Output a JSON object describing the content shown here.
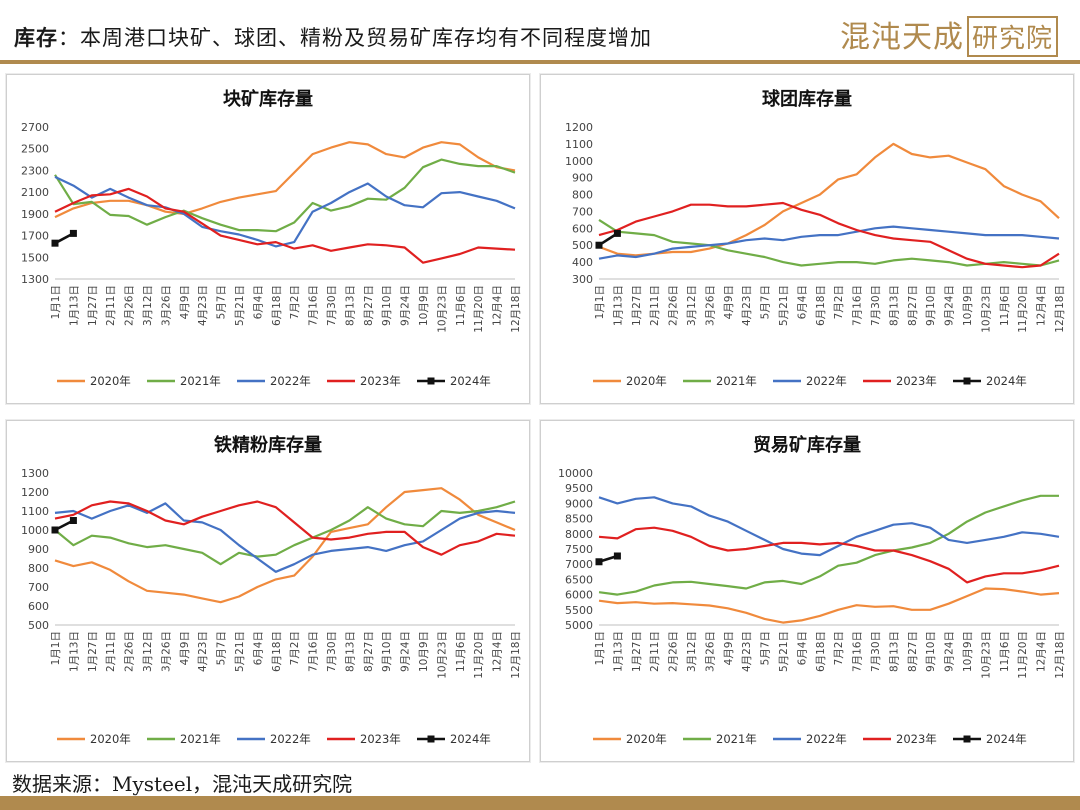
{
  "header": {
    "title_bold": "库存",
    "title_rest": "：本周港口块矿、球团、精粉及贸易矿库存均有不同程度增加"
  },
  "logo": {
    "main": "混沌天成",
    "boxed": "研究院"
  },
  "footer": {
    "source": "数据来源：Mysteel，混沌天成研究院"
  },
  "colors": {
    "2020年": "#f08a3c",
    "2021年": "#70ad47",
    "2022年": "#4472c4",
    "2023年": "#e02020",
    "2024年": "#111111",
    "brand": "#b08a4e"
  },
  "chart_data": [
    {
      "type": "line",
      "title": "块矿库存量",
      "x_labels": [
        "1月1日",
        "1月13日",
        "1月27日",
        "2月11日",
        "2月26日",
        "3月12日",
        "3月26日",
        "4月9日",
        "4月23日",
        "5月7日",
        "5月21日",
        "6月4日",
        "6月18日",
        "7月2日",
        "7月16日",
        "7月30日",
        "8月13日",
        "8月27日",
        "9月10日",
        "9月24日",
        "10月9日",
        "10月23日",
        "11月6日",
        "11月20日",
        "12月4日",
        "12月18日"
      ],
      "ylim": [
        1300,
        2700
      ],
      "yticks": [
        1300,
        1500,
        1700,
        1900,
        2100,
        2300,
        2500,
        2700
      ],
      "series": [
        {
          "name": "2020年",
          "values": [
            1870,
            1950,
            2000,
            2020,
            2020,
            1980,
            1920,
            1900,
            1950,
            2010,
            2050,
            2080,
            2110,
            2280,
            2450,
            2510,
            2560,
            2540,
            2450,
            2420,
            2510,
            2560,
            2540,
            2420,
            2330,
            2300
          ]
        },
        {
          "name": "2021年",
          "values": [
            2260,
            1990,
            2010,
            1890,
            1880,
            1800,
            1870,
            1930,
            1860,
            1800,
            1750,
            1750,
            1740,
            1820,
            2000,
            1930,
            1970,
            2040,
            2030,
            2140,
            2330,
            2400,
            2360,
            2340,
            2340,
            2280
          ]
        },
        {
          "name": "2022年",
          "values": [
            2240,
            2160,
            2050,
            2130,
            2050,
            1980,
            1960,
            1900,
            1780,
            1740,
            1710,
            1660,
            1600,
            1640,
            1920,
            2000,
            2100,
            2180,
            2060,
            1980,
            1960,
            2090,
            2100,
            2060,
            2020,
            1950
          ]
        },
        {
          "name": "2023年",
          "values": [
            1920,
            2000,
            2070,
            2080,
            2130,
            2060,
            1950,
            1920,
            1810,
            1700,
            1660,
            1620,
            1640,
            1580,
            1610,
            1560,
            1590,
            1620,
            1610,
            1590,
            1450,
            1490,
            1530,
            1590,
            1580,
            1570
          ]
        },
        {
          "name": "2024年",
          "values": [
            1630,
            1720
          ]
        }
      ]
    },
    {
      "type": "line",
      "title": "球团库存量",
      "x_labels": [
        "1月1日",
        "1月13日",
        "1月27日",
        "2月11日",
        "2月26日",
        "3月12日",
        "3月26日",
        "4月9日",
        "4月23日",
        "5月7日",
        "5月21日",
        "6月4日",
        "6月18日",
        "7月2日",
        "7月16日",
        "7月30日",
        "8月13日",
        "8月27日",
        "9月10日",
        "9月24日",
        "10月9日",
        "10月23日",
        "11月6日",
        "11月20日",
        "12月4日",
        "12月18日"
      ],
      "ylim": [
        300,
        1200
      ],
      "yticks": [
        300,
        400,
        500,
        600,
        700,
        800,
        900,
        1000,
        1100,
        1200
      ],
      "series": [
        {
          "name": "2020年",
          "values": [
            490,
            450,
            440,
            450,
            460,
            460,
            480,
            510,
            560,
            620,
            700,
            750,
            800,
            890,
            920,
            1020,
            1100,
            1040,
            1020,
            1030,
            990,
            950,
            850,
            800,
            760,
            660
          ]
        },
        {
          "name": "2021年",
          "values": [
            650,
            580,
            570,
            560,
            520,
            510,
            500,
            470,
            450,
            430,
            400,
            380,
            390,
            400,
            400,
            390,
            410,
            420,
            410,
            400,
            380,
            390,
            400,
            390,
            380,
            410
          ]
        },
        {
          "name": "2022年",
          "values": [
            420,
            440,
            430,
            450,
            480,
            490,
            500,
            510,
            530,
            540,
            530,
            550,
            560,
            560,
            580,
            600,
            610,
            600,
            590,
            580,
            570,
            560,
            560,
            560,
            550,
            540
          ]
        },
        {
          "name": "2023年",
          "values": [
            560,
            590,
            640,
            670,
            700,
            740,
            740,
            730,
            730,
            740,
            750,
            710,
            680,
            630,
            590,
            560,
            540,
            530,
            520,
            470,
            420,
            390,
            380,
            370,
            380,
            450
          ]
        },
        {
          "name": "2024年",
          "values": [
            500,
            570
          ]
        }
      ]
    },
    {
      "type": "line",
      "title": "铁精粉库存量",
      "x_labels": [
        "1月1日",
        "1月13日",
        "1月27日",
        "2月11日",
        "2月26日",
        "3月12日",
        "3月26日",
        "4月9日",
        "4月23日",
        "5月7日",
        "5月21日",
        "6月4日",
        "6月18日",
        "7月2日",
        "7月16日",
        "7月30日",
        "8月13日",
        "8月27日",
        "9月10日",
        "9月24日",
        "10月9日",
        "10月23日",
        "11月6日",
        "11月20日",
        "12月4日",
        "12月18日"
      ],
      "ylim": [
        500,
        1300
      ],
      "yticks": [
        500,
        600,
        700,
        800,
        900,
        1000,
        1100,
        1200,
        1300
      ],
      "series": [
        {
          "name": "2020年",
          "values": [
            840,
            810,
            830,
            790,
            730,
            680,
            670,
            660,
            640,
            620,
            650,
            700,
            740,
            760,
            860,
            990,
            1010,
            1030,
            1120,
            1200,
            1210,
            1220,
            1160,
            1080,
            1040,
            1000
          ]
        },
        {
          "name": "2021年",
          "values": [
            1000,
            920,
            970,
            960,
            930,
            910,
            920,
            900,
            880,
            820,
            880,
            860,
            870,
            920,
            960,
            1000,
            1050,
            1120,
            1060,
            1030,
            1020,
            1100,
            1090,
            1100,
            1120,
            1150
          ]
        },
        {
          "name": "2022年",
          "values": [
            1090,
            1100,
            1060,
            1100,
            1130,
            1090,
            1140,
            1050,
            1040,
            1000,
            920,
            850,
            780,
            820,
            870,
            890,
            900,
            910,
            890,
            920,
            940,
            1000,
            1060,
            1090,
            1100,
            1090
          ]
        },
        {
          "name": "2023年",
          "values": [
            1060,
            1080,
            1130,
            1150,
            1140,
            1100,
            1050,
            1030,
            1070,
            1100,
            1130,
            1150,
            1120,
            1040,
            960,
            950,
            960,
            980,
            990,
            990,
            910,
            870,
            920,
            940,
            980,
            970
          ]
        },
        {
          "name": "2024年",
          "values": [
            1000,
            1050
          ]
        }
      ]
    },
    {
      "type": "line",
      "title": "贸易矿库存量",
      "x_labels": [
        "1月1日",
        "1月13日",
        "1月27日",
        "2月11日",
        "2月26日",
        "3月12日",
        "3月26日",
        "4月9日",
        "4月23日",
        "5月7日",
        "5月21日",
        "6月4日",
        "6月18日",
        "7月2日",
        "7月16日",
        "7月30日",
        "8月13日",
        "8月27日",
        "9月10日",
        "9月24日",
        "10月9日",
        "10月23日",
        "11月6日",
        "11月20日",
        "12月4日",
        "12月18日"
      ],
      "ylim": [
        5000,
        10000
      ],
      "yticks": [
        5000,
        5500,
        6000,
        6500,
        7000,
        7500,
        8000,
        8500,
        9000,
        9500,
        10000
      ],
      "series": [
        {
          "name": "2020年",
          "values": [
            5800,
            5720,
            5750,
            5700,
            5720,
            5680,
            5640,
            5550,
            5400,
            5200,
            5080,
            5150,
            5300,
            5500,
            5650,
            5600,
            5620,
            5500,
            5500,
            5700,
            5950,
            6200,
            6180,
            6100,
            6000,
            6050
          ]
        },
        {
          "name": "2021年",
          "values": [
            6080,
            6000,
            6100,
            6300,
            6400,
            6420,
            6350,
            6280,
            6200,
            6400,
            6450,
            6350,
            6600,
            6950,
            7050,
            7300,
            7450,
            7550,
            7700,
            8000,
            8400,
            8700,
            8900,
            9100,
            9250,
            9250
          ]
        },
        {
          "name": "2022年",
          "values": [
            9200,
            9000,
            9150,
            9200,
            9000,
            8900,
            8600,
            8400,
            8100,
            7800,
            7500,
            7350,
            7300,
            7600,
            7900,
            8100,
            8300,
            8350,
            8200,
            7800,
            7700,
            7800,
            7900,
            8050,
            8000,
            7900
          ]
        },
        {
          "name": "2023年",
          "values": [
            7900,
            7850,
            8150,
            8200,
            8100,
            7900,
            7600,
            7450,
            7500,
            7600,
            7700,
            7700,
            7650,
            7700,
            7600,
            7450,
            7450,
            7300,
            7100,
            6850,
            6400,
            6600,
            6700,
            6700,
            6800,
            6950
          ]
        },
        {
          "name": "2024年",
          "values": [
            7080,
            7270
          ]
        }
      ]
    }
  ]
}
